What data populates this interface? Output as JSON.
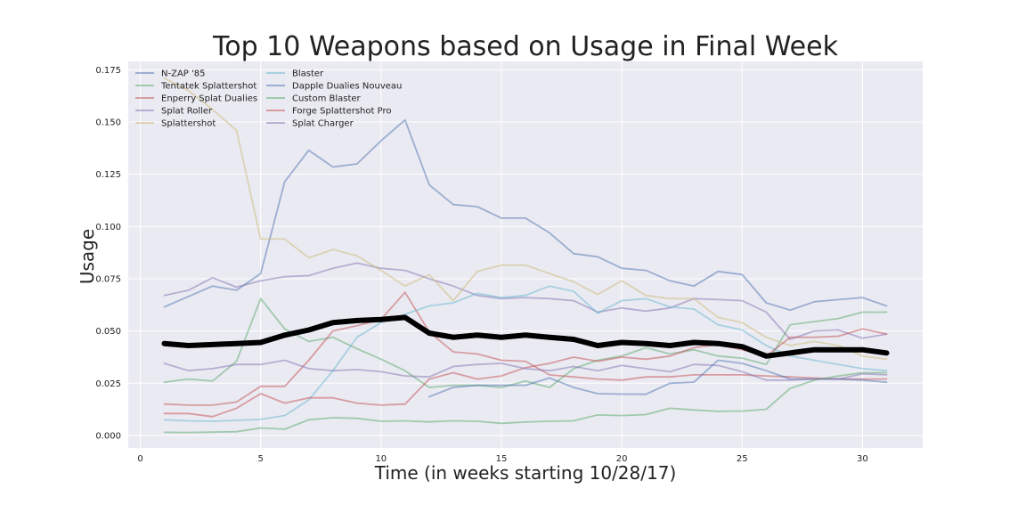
{
  "chart_data": {
    "type": "line",
    "title": "Top 10 Weapons based on Usage in Final Week",
    "xlabel": "Time (in weeks starting 10/28/17)",
    "ylabel": "Usage",
    "xlim": [
      -0.5,
      32.5
    ],
    "ylim": [
      -0.006,
      0.179
    ],
    "xticks": [
      0,
      5,
      10,
      15,
      20,
      25,
      30
    ],
    "yticks": [
      0.0,
      0.025,
      0.05,
      0.075,
      0.1,
      0.125,
      0.15,
      0.175
    ],
    "xtick_labels": [
      "0",
      "5",
      "10",
      "15",
      "20",
      "25",
      "30"
    ],
    "ytick_labels": [
      "0.000",
      "0.025",
      "0.050",
      "0.075",
      "0.100",
      "0.125",
      "0.150",
      "0.175"
    ],
    "grid": true,
    "legend_position": "top-left",
    "background": "#eaeaf2",
    "series": [
      {
        "name": "N-ZAP '85",
        "color": "#4c72b0",
        "x": [
          1,
          2,
          3,
          4,
          5,
          6,
          7,
          8,
          9,
          10,
          11,
          12,
          13,
          14,
          15,
          16,
          17,
          18,
          19,
          20,
          21,
          22,
          23,
          24,
          25,
          26,
          27,
          28,
          29,
          30,
          31
        ],
        "values": [
          0.0615,
          0.0665,
          0.0715,
          0.0695,
          0.0775,
          0.1215,
          0.1365,
          0.1285,
          0.13,
          0.141,
          0.151,
          0.12,
          0.1105,
          0.1095,
          0.104,
          0.104,
          0.097,
          0.087,
          0.0855,
          0.08,
          0.079,
          0.074,
          0.0715,
          0.0785,
          0.077,
          0.0635,
          0.06,
          0.064,
          0.065,
          0.066,
          0.062
        ]
      },
      {
        "name": "Tentatek Splattershot",
        "color": "#55a868",
        "x": [
          1,
          2,
          3,
          4,
          5,
          6,
          7,
          8,
          9,
          10,
          11,
          12,
          13,
          14,
          15,
          16,
          17,
          18,
          19,
          20,
          21,
          22,
          23,
          24,
          25,
          26,
          27,
          28,
          29,
          30,
          31
        ],
        "values": [
          0.0255,
          0.027,
          0.026,
          0.0355,
          0.0655,
          0.051,
          0.045,
          0.047,
          0.0415,
          0.0365,
          0.031,
          0.023,
          0.024,
          0.024,
          0.023,
          0.026,
          0.023,
          0.032,
          0.036,
          0.038,
          0.042,
          0.039,
          0.041,
          0.038,
          0.037,
          0.034,
          0.053,
          0.0545,
          0.056,
          0.059,
          0.059
        ]
      },
      {
        "name": "Enperry Splat Dualies",
        "color": "#c44e52",
        "x": [
          1,
          2,
          3,
          4,
          5,
          6,
          7,
          8,
          9,
          10,
          11,
          12,
          13,
          14,
          15,
          16,
          17,
          18,
          19,
          20,
          21,
          22,
          23,
          24,
          25,
          26,
          27,
          28,
          29,
          30,
          31
        ],
        "values": [
          0.015,
          0.0145,
          0.0145,
          0.016,
          0.0235,
          0.0235,
          0.036,
          0.05,
          0.0525,
          0.0555,
          0.0685,
          0.0495,
          0.04,
          0.039,
          0.036,
          0.0355,
          0.029,
          0.028,
          0.027,
          0.0265,
          0.028,
          0.028,
          0.029,
          0.029,
          0.029,
          0.0285,
          0.028,
          0.0275,
          0.027,
          0.027,
          0.027
        ]
      },
      {
        "name": "Splat Roller",
        "color": "#8172b2",
        "x": [
          1,
          2,
          3,
          4,
          5,
          6,
          7,
          8,
          9,
          10,
          11,
          12,
          13,
          14,
          15,
          16,
          17,
          18,
          19,
          20,
          21,
          22,
          23,
          24,
          25,
          26,
          27,
          28,
          29,
          30,
          31
        ],
        "values": [
          0.067,
          0.0695,
          0.0755,
          0.071,
          0.074,
          0.076,
          0.0765,
          0.08,
          0.0825,
          0.08,
          0.079,
          0.075,
          0.0715,
          0.067,
          0.0655,
          0.066,
          0.0655,
          0.0645,
          0.059,
          0.061,
          0.0595,
          0.061,
          0.0655,
          0.065,
          0.0645,
          0.059,
          0.046,
          0.05,
          0.0505,
          0.0465,
          0.0485
        ]
      },
      {
        "name": "Splattershot",
        "color": "#ccb974",
        "x": [
          1,
          2,
          3,
          4,
          5,
          6,
          7,
          8,
          9,
          10,
          11,
          12,
          13,
          14,
          15,
          16,
          17,
          18,
          19,
          20,
          21,
          22,
          23,
          24,
          25,
          26,
          27,
          28,
          29,
          30,
          31
        ],
        "values": [
          0.171,
          0.165,
          0.156,
          0.146,
          0.094,
          0.094,
          0.085,
          0.089,
          0.086,
          0.079,
          0.0715,
          0.077,
          0.0645,
          0.0785,
          0.0815,
          0.0815,
          0.0775,
          0.0735,
          0.0675,
          0.074,
          0.067,
          0.0655,
          0.0655,
          0.0565,
          0.054,
          0.047,
          0.043,
          0.045,
          0.043,
          0.038,
          0.0365
        ]
      },
      {
        "name": "Blaster",
        "color": "#64b5cd",
        "x": [
          1,
          2,
          3,
          4,
          5,
          6,
          7,
          8,
          9,
          10,
          11,
          12,
          13,
          14,
          15,
          16,
          17,
          18,
          19,
          20,
          21,
          22,
          23,
          24,
          25,
          26,
          27,
          28,
          29,
          30,
          31
        ],
        "values": [
          0.0075,
          0.007,
          0.0068,
          0.0072,
          0.0077,
          0.0095,
          0.017,
          0.031,
          0.047,
          0.054,
          0.058,
          0.062,
          0.0635,
          0.068,
          0.066,
          0.067,
          0.0715,
          0.069,
          0.0585,
          0.0645,
          0.0655,
          0.0615,
          0.0605,
          0.053,
          0.0505,
          0.043,
          0.038,
          0.036,
          0.034,
          0.032,
          0.031
        ]
      },
      {
        "name": "Dapple Dualies Nouveau",
        "color": "#4c72b0",
        "x": [
          12,
          13,
          14,
          15,
          16,
          17,
          18,
          19,
          20,
          21,
          22,
          23,
          24,
          25,
          26,
          27,
          28,
          29,
          30,
          31
        ],
        "values": [
          0.0185,
          0.023,
          0.024,
          0.024,
          0.024,
          0.0275,
          0.023,
          0.02,
          0.0198,
          0.0197,
          0.025,
          0.0255,
          0.036,
          0.0345,
          0.031,
          0.027,
          0.027,
          0.027,
          0.0265,
          0.0255
        ]
      },
      {
        "name": "Custom Blaster",
        "color": "#55a868",
        "x": [
          1,
          2,
          3,
          4,
          5,
          6,
          7,
          8,
          9,
          10,
          11,
          12,
          13,
          14,
          15,
          16,
          17,
          18,
          19,
          20,
          21,
          22,
          23,
          24,
          25,
          26,
          27,
          28,
          29,
          30,
          31
        ],
        "values": [
          0.0015,
          0.0014,
          0.0016,
          0.0018,
          0.0036,
          0.003,
          0.0075,
          0.0085,
          0.0082,
          0.0068,
          0.007,
          0.0065,
          0.007,
          0.0068,
          0.0058,
          0.0064,
          0.0068,
          0.007,
          0.0098,
          0.0095,
          0.01,
          0.013,
          0.0122,
          0.0115,
          0.0117,
          0.0125,
          0.0225,
          0.0265,
          0.0285,
          0.03,
          0.03
        ]
      },
      {
        "name": "Forge Splattershot Pro",
        "color": "#c44e52",
        "x": [
          1,
          2,
          3,
          4,
          5,
          6,
          7,
          8,
          9,
          10,
          11,
          12,
          13,
          14,
          15,
          16,
          17,
          18,
          19,
          20,
          21,
          22,
          23,
          24,
          25,
          26,
          27,
          28,
          29,
          30,
          31
        ],
        "values": [
          0.0105,
          0.0105,
          0.009,
          0.013,
          0.02,
          0.0155,
          0.018,
          0.018,
          0.0155,
          0.0145,
          0.015,
          0.027,
          0.03,
          0.027,
          0.0285,
          0.0325,
          0.0345,
          0.0375,
          0.0355,
          0.0375,
          0.0365,
          0.038,
          0.042,
          0.0435,
          0.041,
          0.038,
          0.047,
          0.047,
          0.0475,
          0.051,
          0.0485
        ]
      },
      {
        "name": "Splat Charger",
        "color": "#8172b2",
        "x": [
          1,
          2,
          3,
          4,
          5,
          6,
          7,
          8,
          9,
          10,
          11,
          12,
          13,
          14,
          15,
          16,
          17,
          18,
          19,
          20,
          21,
          22,
          23,
          24,
          25,
          26,
          27,
          28,
          29,
          30,
          31
        ],
        "values": [
          0.0345,
          0.031,
          0.032,
          0.034,
          0.034,
          0.036,
          0.032,
          0.031,
          0.0315,
          0.0305,
          0.0285,
          0.028,
          0.033,
          0.034,
          0.0345,
          0.032,
          0.031,
          0.033,
          0.031,
          0.0335,
          0.032,
          0.0305,
          0.034,
          0.0335,
          0.0305,
          0.0265,
          0.0265,
          0.027,
          0.027,
          0.0295,
          0.029
        ]
      },
      {
        "name": "",
        "color": "#000000",
        "bold": true,
        "x": [
          1,
          2,
          3,
          4,
          5,
          6,
          7,
          8,
          9,
          10,
          11,
          12,
          13,
          14,
          15,
          16,
          17,
          18,
          19,
          20,
          21,
          22,
          23,
          24,
          25,
          26,
          27,
          28,
          29,
          30,
          31
        ],
        "values": [
          0.044,
          0.043,
          0.0435,
          0.044,
          0.0445,
          0.048,
          0.0505,
          0.054,
          0.055,
          0.0555,
          0.0565,
          0.049,
          0.047,
          0.048,
          0.047,
          0.048,
          0.047,
          0.046,
          0.043,
          0.0445,
          0.044,
          0.043,
          0.0445,
          0.044,
          0.0425,
          0.038,
          0.0395,
          0.041,
          0.041,
          0.041,
          0.0395
        ]
      }
    ]
  }
}
